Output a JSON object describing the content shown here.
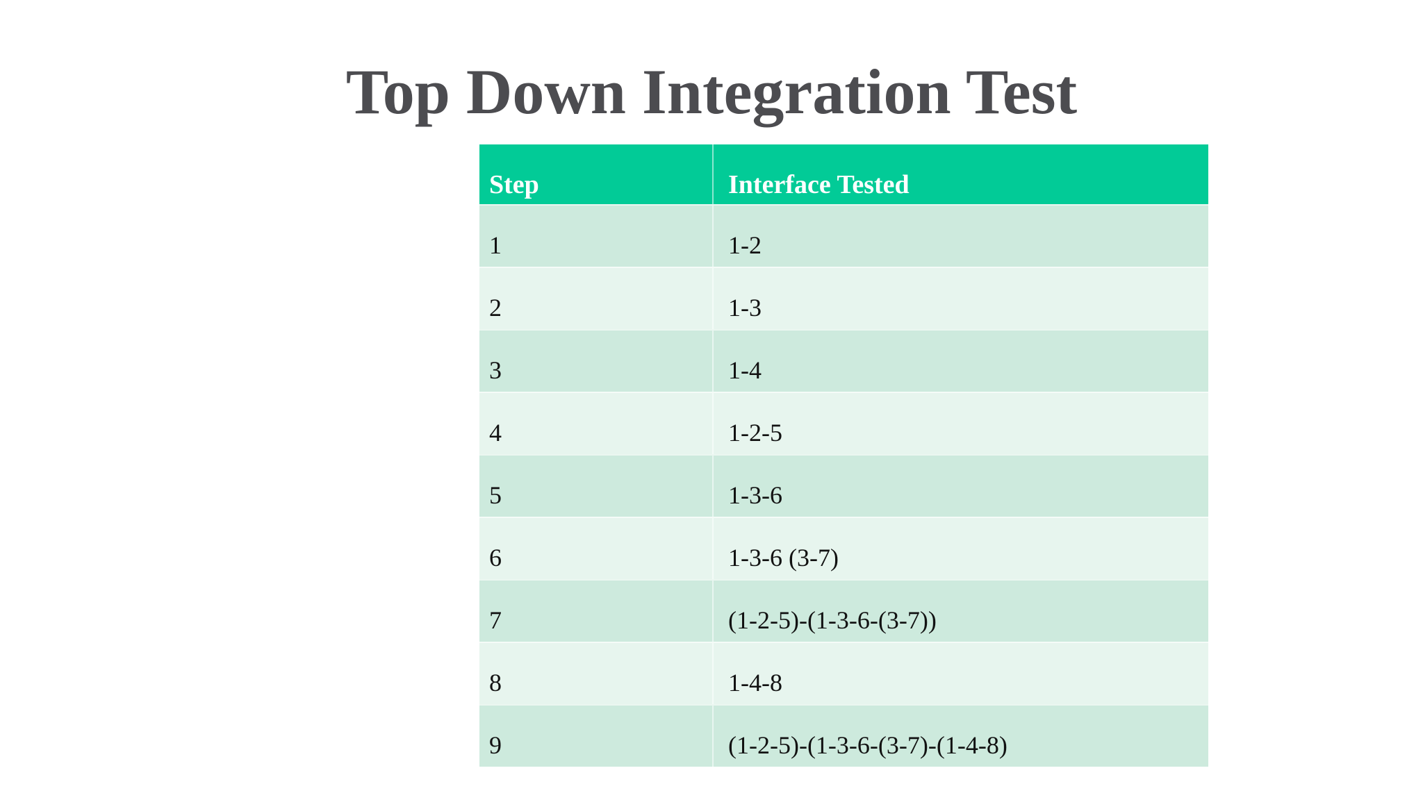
{
  "page": {
    "background_color": "#ffffff"
  },
  "chart_data": {
    "type": "table",
    "title": "Top Down Integration Test",
    "columns": [
      "Step",
      "Interface Tested"
    ],
    "rows": [
      [
        "1",
        "1-2"
      ],
      [
        "2",
        "1-3"
      ],
      [
        "3",
        "1-4"
      ],
      [
        "4",
        "1-2-5"
      ],
      [
        "5",
        "1-3-6"
      ],
      [
        "6",
        "1-3-6 (3-7)"
      ],
      [
        "7",
        "(1-2-5)-(1-3-6-(3-7))"
      ],
      [
        "8",
        "1-4-8"
      ],
      [
        "9",
        "(1-2-5)-(1-3-6-(3-7)-(1-4-8)"
      ]
    ],
    "legend": "none",
    "grid": "off"
  },
  "colors": {
    "header_bg": "#02cb97",
    "header_text": "#ffffff",
    "row_dark": "#cdeadd",
    "row_light": "#e7f5ee",
    "cell_text": "#121212",
    "title_text": "#4c4c50"
  }
}
